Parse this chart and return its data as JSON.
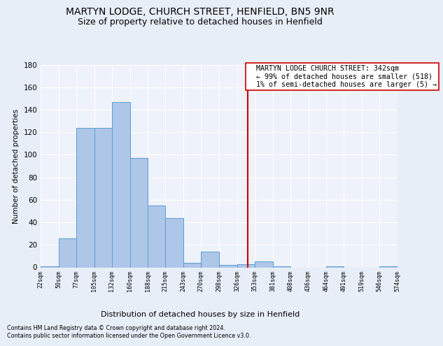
{
  "title": "MARTYN LODGE, CHURCH STREET, HENFIELD, BN5 9NR",
  "subtitle": "Size of property relative to detached houses in Henfield",
  "xlabel": "Distribution of detached houses by size in Henfield",
  "ylabel": "Number of detached properties",
  "footer1": "Contains HM Land Registry data © Crown copyright and database right 2024.",
  "footer2": "Contains public sector information licensed under the Open Government Licence v3.0.",
  "bar_edges": [
    22,
    50,
    77,
    105,
    132,
    160,
    188,
    215,
    243,
    270,
    298,
    326,
    353,
    381,
    408,
    436,
    464,
    491,
    519,
    546,
    574
  ],
  "bar_values": [
    1,
    26,
    124,
    124,
    147,
    97,
    55,
    44,
    4,
    14,
    2,
    3,
    5,
    1,
    0,
    0,
    1,
    0,
    0,
    1
  ],
  "bar_color": "#aec6e8",
  "bar_edge_color": "#5a9fd4",
  "reference_line_x": 342,
  "reference_line_color": "#cc0000",
  "annotation_text": "  MARTYN LODGE CHURCH STREET: 342sqm\n  ← 99% of detached houses are smaller (518)\n  1% of semi-detached houses are larger (5) →",
  "annotation_box_color": "#ffffff",
  "annotation_box_edge_color": "#cc0000",
  "ylim": [
    0,
    180
  ],
  "yticks": [
    0,
    20,
    40,
    60,
    80,
    100,
    120,
    140,
    160,
    180
  ],
  "bg_color": "#e8eef8",
  "plot_bg_color": "#eef2fa",
  "grid_color": "#ffffff",
  "title_fontsize": 10,
  "subtitle_fontsize": 9,
  "tick_labels": [
    "22sqm",
    "50sqm",
    "77sqm",
    "105sqm",
    "132sqm",
    "160sqm",
    "188sqm",
    "215sqm",
    "243sqm",
    "270sqm",
    "298sqm",
    "326sqm",
    "353sqm",
    "381sqm",
    "408sqm",
    "436sqm",
    "464sqm",
    "491sqm",
    "519sqm",
    "546sqm",
    "574sqm"
  ]
}
